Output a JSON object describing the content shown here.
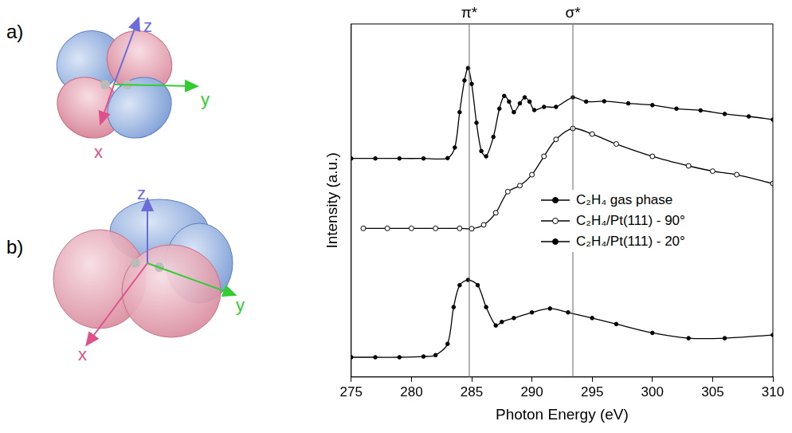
{
  "panels": [
    {
      "label": "a)",
      "axis_labels": {
        "z": "z",
        "y": "y",
        "x": "x"
      }
    },
    {
      "label": "b)",
      "axis_labels": {
        "z": "z",
        "y": "y",
        "x": "x"
      }
    }
  ],
  "chart_data": {
    "type": "line",
    "x_label": "Photon Energy (eV)",
    "y_label": "Intensity (a.u.)",
    "xlim": [
      275,
      310
    ],
    "xticks": [
      275,
      280,
      285,
      290,
      295,
      300,
      305,
      310
    ],
    "ylim": [
      0,
      10
    ],
    "tick_labels": "x",
    "grid": false,
    "legend": "center right",
    "annotations": [
      {
        "x": 284.8,
        "label": "π*"
      },
      {
        "x": 293.4,
        "label": "σ*"
      }
    ],
    "series": [
      {
        "name": "C₂H₄ gas phase",
        "color": "#000000",
        "marker": "filled_circle",
        "x": [
          275,
          277,
          279,
          281,
          283,
          283.6,
          284,
          284.4,
          284.7,
          285,
          285.4,
          285.8,
          286.2,
          286.8,
          287.3,
          287.7,
          288.1,
          288.5,
          289,
          289.4,
          289.8,
          290.2,
          291,
          292,
          293.4,
          294.5,
          296,
          298,
          300,
          302,
          304,
          306,
          308,
          310
        ],
        "values": [
          6.19,
          6.19,
          6.19,
          6.19,
          6.2,
          6.5,
          7.5,
          8.4,
          8.75,
          8.3,
          7.2,
          6.4,
          6.25,
          6.8,
          7.6,
          7.96,
          7.8,
          7.5,
          7.75,
          7.92,
          7.8,
          7.56,
          7.65,
          7.65,
          7.92,
          7.8,
          7.81,
          7.75,
          7.7,
          7.6,
          7.55,
          7.45,
          7.38,
          7.29
        ]
      },
      {
        "name": "C₂H₄/Pt(111) - 90°",
        "color": "#000000",
        "marker": "open_circle",
        "x": [
          276,
          278,
          280,
          282,
          284,
          285,
          286,
          287,
          288,
          289,
          290,
          291,
          292,
          293.4,
          295,
          297,
          300,
          303,
          305,
          307,
          310
        ],
        "values": [
          4.21,
          4.21,
          4.21,
          4.21,
          4.21,
          4.2,
          4.31,
          4.65,
          5.25,
          5.42,
          5.73,
          6.25,
          6.73,
          7.04,
          6.88,
          6.6,
          6.25,
          5.98,
          5.83,
          5.73,
          5.48
        ]
      },
      {
        "name": "C₂H₄/Pt(111) - 20°",
        "color": "#000000",
        "marker": "filled_circle",
        "x": [
          275,
          277,
          279,
          281,
          282,
          283,
          283.5,
          284,
          284.7,
          285.5,
          286.2,
          287,
          287.5,
          288.5,
          290,
          291.5,
          293,
          295,
          297,
          300,
          303,
          306,
          310
        ],
        "values": [
          0.56,
          0.56,
          0.56,
          0.58,
          0.62,
          0.94,
          1.98,
          2.6,
          2.75,
          2.6,
          1.98,
          1.46,
          1.56,
          1.67,
          1.83,
          1.94,
          1.83,
          1.67,
          1.5,
          1.25,
          1.1,
          1.1,
          1.19
        ]
      }
    ]
  }
}
